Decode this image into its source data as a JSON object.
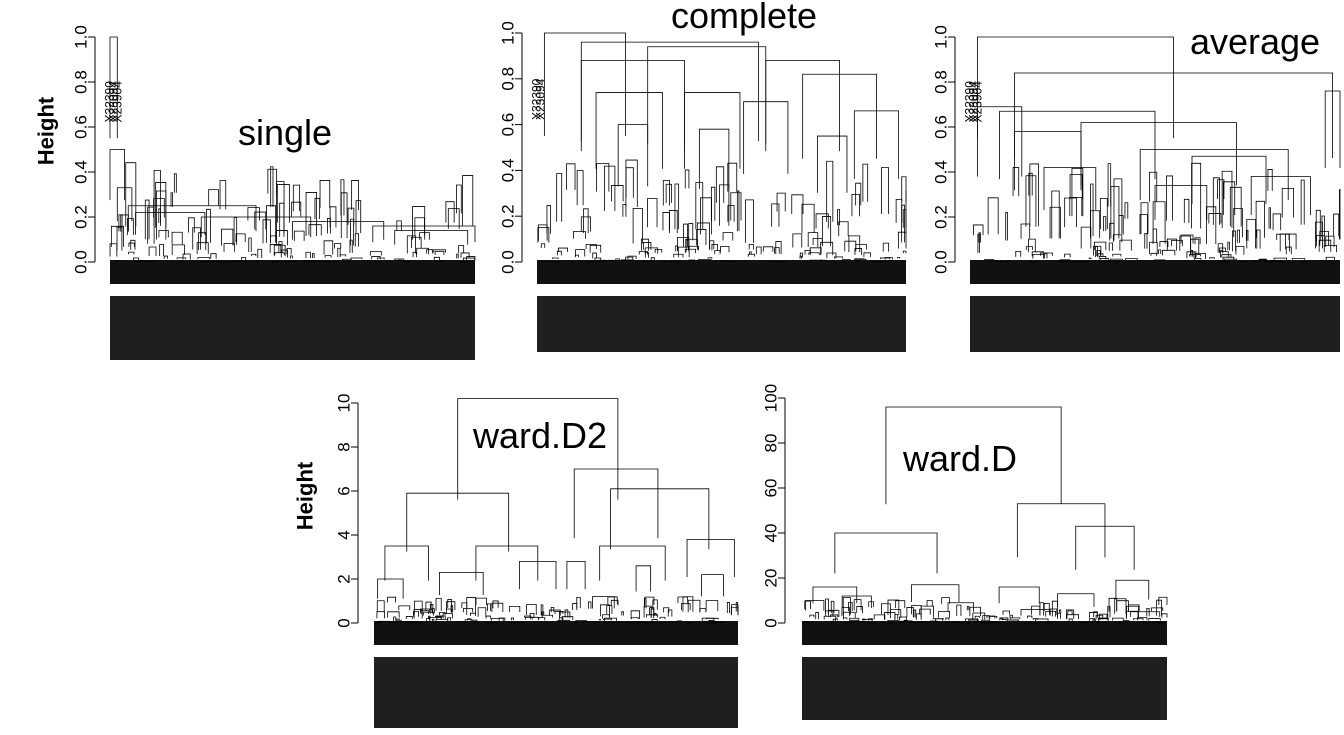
{
  "chart_data": [
    {
      "type": "dendrogram",
      "title": "single",
      "ylabel": "Height",
      "ylim": [
        0,
        1.0
      ],
      "yticks": [
        "0.0",
        "0.2",
        "0.4",
        "0.6",
        "0.8",
        "1.0"
      ],
      "outlier_labels": [
        "X32390",
        "X23094",
        "X23904"
      ],
      "merges": [
        {
          "height": 1.0,
          "from": 0.0,
          "to": 0.02
        },
        {
          "height": 0.5,
          "from": 0.0,
          "to": 0.04
        },
        {
          "height": 0.33,
          "from": 0.02,
          "to": 0.06
        },
        {
          "height": 0.25,
          "from": 0.05,
          "to": 0.4
        },
        {
          "height": 0.22,
          "from": 0.07,
          "to": 0.26
        },
        {
          "height": 0.2,
          "from": 0.25,
          "to": 0.55
        },
        {
          "height": 0.18,
          "from": 0.5,
          "to": 0.75
        },
        {
          "height": 0.16,
          "from": 0.72,
          "to": 1.0
        },
        {
          "height": 0.14,
          "from": 0.78,
          "to": 0.98
        }
      ]
    },
    {
      "type": "dendrogram",
      "title": "complete",
      "ylabel": "",
      "ylim": [
        0,
        1.0
      ],
      "yticks": [
        "0.0",
        "0.2",
        "0.4",
        "0.6",
        "0.8",
        "1.0"
      ],
      "outlier_labels": [
        "X32390",
        "X23094"
      ],
      "merges": [
        {
          "height": 1.0,
          "from": 0.02,
          "to": 0.24
        },
        {
          "height": 0.96,
          "from": 0.12,
          "to": 0.6
        },
        {
          "height": 0.94,
          "from": 0.3,
          "to": 0.62
        },
        {
          "height": 0.88,
          "from": 0.12,
          "to": 0.4
        },
        {
          "height": 0.88,
          "from": 0.62,
          "to": 0.82
        },
        {
          "height": 0.82,
          "from": 0.72,
          "to": 0.92
        },
        {
          "height": 0.74,
          "from": 0.16,
          "to": 0.34
        },
        {
          "height": 0.74,
          "from": 0.4,
          "to": 0.55
        },
        {
          "height": 0.7,
          "from": 0.56,
          "to": 0.68
        },
        {
          "height": 0.66,
          "from": 0.86,
          "to": 0.98
        },
        {
          "height": 0.6,
          "from": 0.22,
          "to": 0.3
        },
        {
          "height": 0.58,
          "from": 0.44,
          "to": 0.52
        },
        {
          "height": 0.55,
          "from": 0.76,
          "to": 0.84
        }
      ]
    },
    {
      "type": "dendrogram",
      "title": "average",
      "ylabel": "",
      "ylim": [
        0,
        1.0
      ],
      "yticks": [
        "0.0",
        "0.2",
        "0.4",
        "0.6",
        "0.8",
        "1.0"
      ],
      "outlier_labels": [
        "X32390",
        "X23094",
        "X23904"
      ],
      "merges": [
        {
          "height": 1.0,
          "from": 0.02,
          "to": 0.55
        },
        {
          "height": 0.84,
          "from": 0.12,
          "to": 0.98
        },
        {
          "height": 0.76,
          "from": 0.96,
          "to": 1.0
        },
        {
          "height": 0.69,
          "from": 0.02,
          "to": 0.14
        },
        {
          "height": 0.67,
          "from": 0.08,
          "to": 0.5
        },
        {
          "height": 0.62,
          "from": 0.3,
          "to": 0.72
        },
        {
          "height": 0.58,
          "from": 0.12,
          "to": 0.3
        },
        {
          "height": 0.5,
          "from": 0.46,
          "to": 0.86
        },
        {
          "height": 0.47,
          "from": 0.6,
          "to": 0.8
        },
        {
          "height": 0.42,
          "from": 0.2,
          "to": 0.34
        },
        {
          "height": 0.38,
          "from": 0.76,
          "to": 0.92
        },
        {
          "height": 0.34,
          "from": 0.5,
          "to": 0.64
        }
      ]
    },
    {
      "type": "dendrogram",
      "title": "ward.D2",
      "ylabel": "Height",
      "ylim": [
        0,
        10
      ],
      "yticks": [
        "0",
        "2",
        "4",
        "6",
        "8",
        "10"
      ],
      "outlier_labels": [],
      "merges": [
        {
          "height": 10.2,
          "from": 0.23,
          "to": 0.67
        },
        {
          "height": 7.0,
          "from": 0.55,
          "to": 0.78
        },
        {
          "height": 5.9,
          "from": 0.09,
          "to": 0.37
        },
        {
          "height": 6.1,
          "from": 0.65,
          "to": 0.92
        },
        {
          "height": 3.5,
          "from": 0.03,
          "to": 0.15
        },
        {
          "height": 3.5,
          "from": 0.28,
          "to": 0.45
        },
        {
          "height": 3.5,
          "from": 0.62,
          "to": 0.8
        },
        {
          "height": 3.8,
          "from": 0.86,
          "to": 0.99
        },
        {
          "height": 2.8,
          "from": 0.4,
          "to": 0.5
        },
        {
          "height": 2.3,
          "from": 0.18,
          "to": 0.3
        },
        {
          "height": 2.0,
          "from": 0.01,
          "to": 0.08
        },
        {
          "height": 2.8,
          "from": 0.53,
          "to": 0.58
        },
        {
          "height": 2.6,
          "from": 0.72,
          "to": 0.76
        },
        {
          "height": 2.2,
          "from": 0.9,
          "to": 0.96
        },
        {
          "height": 1.2,
          "from": 0.6,
          "to": 0.66
        }
      ]
    },
    {
      "type": "dendrogram",
      "title": "ward.D",
      "ylabel": "",
      "ylim": [
        0,
        100
      ],
      "yticks": [
        "0",
        "20",
        "40",
        "60",
        "80",
        "100"
      ],
      "outlier_labels": [],
      "merges": [
        {
          "height": 96,
          "from": 0.23,
          "to": 0.71
        },
        {
          "height": 53,
          "from": 0.59,
          "to": 0.83
        },
        {
          "height": 40,
          "from": 0.09,
          "to": 0.37
        },
        {
          "height": 43,
          "from": 0.75,
          "to": 0.91
        },
        {
          "height": 16,
          "from": 0.03,
          "to": 0.15
        },
        {
          "height": 17,
          "from": 0.3,
          "to": 0.43
        },
        {
          "height": 16,
          "from": 0.54,
          "to": 0.65
        },
        {
          "height": 19,
          "from": 0.86,
          "to": 0.95
        },
        {
          "height": 13,
          "from": 0.7,
          "to": 0.8
        },
        {
          "height": 10,
          "from": 0.01,
          "to": 0.06
        },
        {
          "height": 12,
          "from": 0.11,
          "to": 0.19
        },
        {
          "height": 9,
          "from": 0.4,
          "to": 0.47
        },
        {
          "height": 6,
          "from": 0.6,
          "to": 0.68
        },
        {
          "height": 5,
          "from": 0.9,
          "to": 0.98
        }
      ]
    }
  ]
}
